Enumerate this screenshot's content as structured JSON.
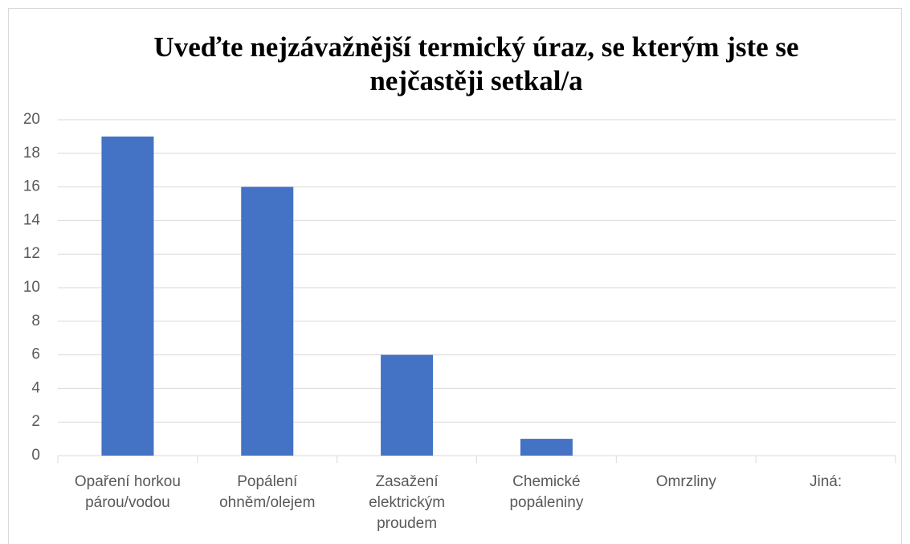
{
  "chart_data": {
    "type": "bar",
    "title": "Uveďte nejzávažnější termický úraz, se kterým jste se nejčastěji setkal/a",
    "categories": [
      "Opaření horkou párou/vodou",
      "Popálení ohněm/olejem",
      "Zasažení elektrickým proudem",
      "Chemické popáleniny",
      "Omrzliny",
      "Jiná:"
    ],
    "values": [
      19,
      16,
      6,
      1,
      0,
      0
    ],
    "color": "#4472c4",
    "ylim": [
      0,
      20
    ],
    "yticks": [
      0,
      2,
      4,
      6,
      8,
      10,
      12,
      14,
      16,
      18,
      20
    ],
    "grid": true
  }
}
